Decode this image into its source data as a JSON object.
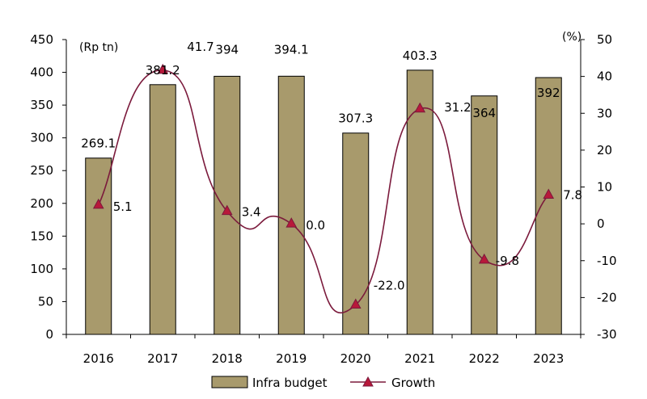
{
  "chart_data": {
    "type": "bar",
    "categories": [
      "2016",
      "2017",
      "2018",
      "2019",
      "2020",
      "2021",
      "2022",
      "2023"
    ],
    "series": [
      {
        "name": "Infra budget",
        "type": "bar",
        "axis": "left",
        "values": [
          269.1,
          381.2,
          394,
          394.1,
          307.3,
          403.3,
          364,
          392
        ],
        "labels": [
          "269.1",
          "381.2",
          "394",
          "394.1",
          "307.3",
          "403.3",
          "364",
          "392"
        ],
        "color": "#a89a6c"
      },
      {
        "name": "Growth",
        "type": "line",
        "axis": "right",
        "values": [
          5.1,
          41.7,
          3.4,
          0.0,
          -22.0,
          31.2,
          -9.8,
          7.8
        ],
        "labels": [
          "5.1",
          "41.7",
          "3.4",
          "0.0",
          "-22.0",
          "31.2",
          "-9.8",
          "7.8"
        ],
        "color": "#7b1a3c",
        "marker_color": "#b8183a"
      }
    ],
    "left_axis": {
      "unit": "(Rp tn)",
      "ylim": [
        0,
        450
      ],
      "ticks": [
        0,
        50,
        100,
        150,
        200,
        250,
        300,
        350,
        400,
        450
      ]
    },
    "right_axis": {
      "unit": "(%)",
      "ylim": [
        -30,
        50
      ],
      "ticks": [
        -30,
        -20,
        -10,
        0,
        10,
        20,
        30,
        40,
        50
      ]
    },
    "grid": false,
    "legend": {
      "placement": "bottom",
      "entries": [
        "Infra budget",
        "Growth"
      ]
    }
  }
}
